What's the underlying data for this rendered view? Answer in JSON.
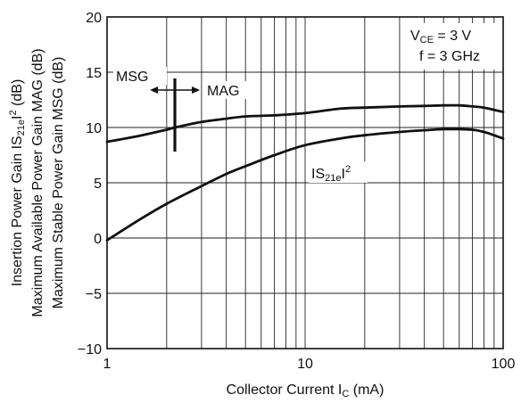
{
  "chart_data": {
    "type": "line",
    "x_scale": "log",
    "xlim": [
      1,
      100
    ],
    "ylim": [
      -10,
      20
    ],
    "x_ticks": [
      "1",
      "10",
      "100"
    ],
    "y_ticks": [
      "20",
      "15",
      "10",
      "5",
      "0",
      "−5",
      "−10"
    ],
    "xlabel": {
      "main": "Collector Current  I",
      "sub": "C",
      "unit": " (mA)"
    },
    "ylabel": {
      "line1": {
        "pre": "Insertion Power Gain  IS",
        "sub": "21e",
        "post": "I",
        "sup": "2",
        "unit": " (dB)"
      },
      "line2": "Maximum Available Power Gain  MAG (dB)",
      "line3": "Maximum Stable Power Gain  MSG (dB)"
    },
    "conditions": {
      "vce": {
        "pre": "V",
        "sub": "CE",
        "post": " = 3 V"
      },
      "freq": "f = 3 GHz"
    },
    "annotations": {
      "msg": "MSG",
      "mag": "MAG",
      "s21": {
        "pre": "IS",
        "sub": "21e",
        "post": "I",
        "sup": "2"
      },
      "msg_mag_boundary_x": 2.2
    },
    "grid": true,
    "series": [
      {
        "x": [
          1,
          1.5,
          2,
          2.2,
          3,
          4,
          5,
          7,
          10,
          15,
          20,
          30,
          40,
          50,
          60,
          70,
          80,
          100
        ],
        "y": [
          8.7,
          9.3,
          9.8,
          10.0,
          10.5,
          10.8,
          11.0,
          11.1,
          11.3,
          11.7,
          11.8,
          11.9,
          11.95,
          12.0,
          12.0,
          11.9,
          11.8,
          11.4
        ]
      },
      {
        "x": [
          1,
          1.5,
          2,
          3,
          4,
          5,
          7,
          10,
          15,
          20,
          30,
          40,
          50,
          60,
          70,
          80,
          90,
          100
        ],
        "y": [
          -0.2,
          1.8,
          3.1,
          4.7,
          5.8,
          6.5,
          7.5,
          8.4,
          9.0,
          9.3,
          9.6,
          9.75,
          9.85,
          9.85,
          9.8,
          9.6,
          9.3,
          9.0
        ]
      }
    ]
  }
}
